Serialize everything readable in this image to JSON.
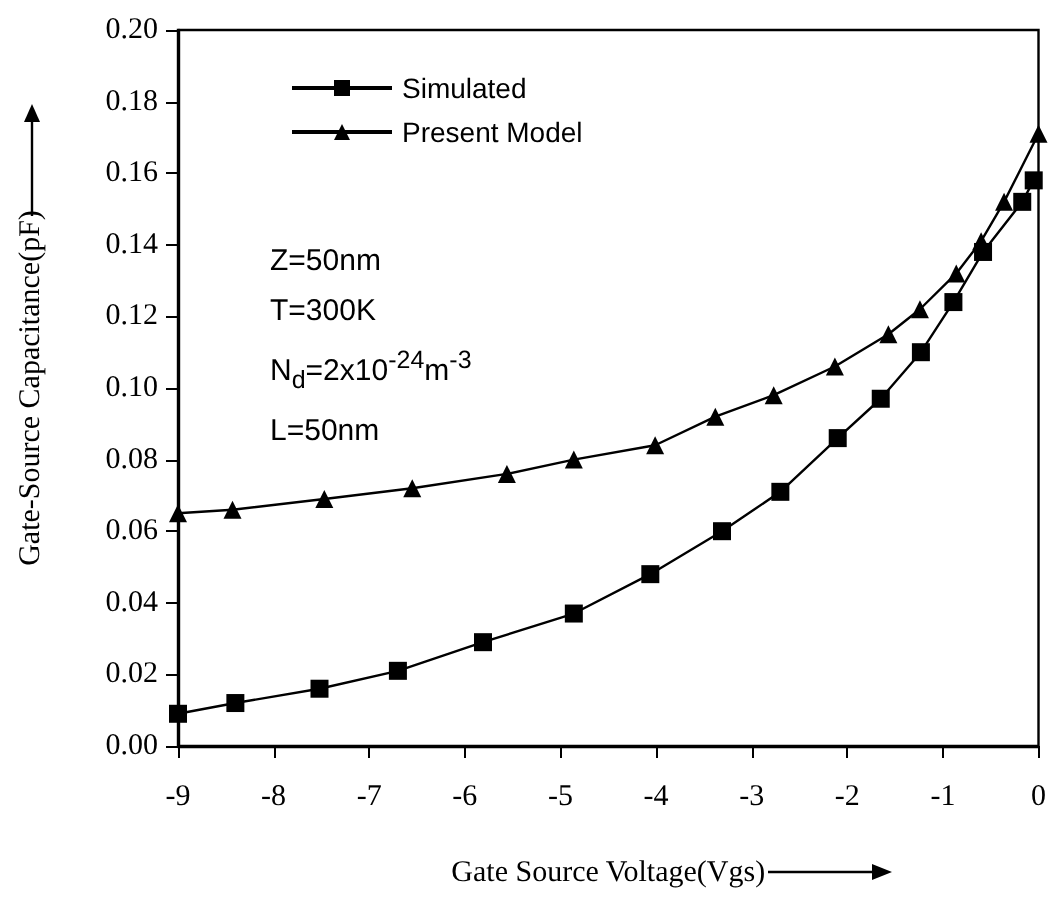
{
  "chart_data": {
    "type": "line",
    "xlabel": "Gate Source Voltage(Vgs)",
    "ylabel": "Gate-Source Capacitance(pF)",
    "xlim": [
      -9,
      0
    ],
    "xticks": [
      -9,
      -8,
      -7,
      -6,
      -5,
      -4,
      -3,
      -2,
      -1,
      0
    ],
    "ylim": [
      0,
      0.2
    ],
    "yticks": [
      {
        "value": 0,
        "label": "0.00"
      },
      {
        "value": 0.02,
        "label": "0.02"
      },
      {
        "value": 0.04,
        "label": "0.04"
      },
      {
        "value": 0.06,
        "label": "0.06"
      },
      {
        "value": 0.08,
        "label": "0.08"
      },
      {
        "value": 0.1,
        "label": "0.10"
      },
      {
        "value": 0.12,
        "label": "0.12"
      },
      {
        "value": 0.14,
        "label": "0.14"
      },
      {
        "value": 0.16,
        "label": "0.16"
      },
      {
        "value": 0.18,
        "label": "0.18"
      },
      {
        "value": 0.2,
        "label": "0.20"
      }
    ],
    "grid": false,
    "legend": "top left",
    "line_style": "solid",
    "annotations": [
      "Z=50nm",
      "T=300K",
      "N$_{d}$=2x10$^{-24}$m$^{-3}$",
      "L=50nm"
    ],
    "series": [
      {
        "name": "Simulated",
        "color": "#000000",
        "marker": "square",
        "x": [
          -9.0,
          -8.4,
          -7.52,
          -6.7,
          -5.81,
          -4.86,
          -4.06,
          -3.31,
          -2.7,
          -2.1,
          -1.65,
          -1.23,
          -0.89,
          -0.58,
          -0.17,
          -0.05
        ],
        "values": [
          0.009,
          0.012,
          0.016,
          0.021,
          0.029,
          0.037,
          0.048,
          0.06,
          0.071,
          0.086,
          0.097,
          0.11,
          0.124,
          0.138,
          0.152,
          0.158
        ]
      },
      {
        "name": "Present Model",
        "color": "#000000",
        "marker": "triangle",
        "x": [
          -9.0,
          -8.43,
          -7.47,
          -6.55,
          -5.56,
          -4.86,
          -4.01,
          -3.38,
          -2.77,
          -2.13,
          -1.57,
          -1.24,
          -0.86,
          -0.6,
          -0.36,
          0.0
        ],
        "values": [
          0.065,
          0.066,
          0.069,
          0.072,
          0.076,
          0.08,
          0.084,
          0.092,
          0.098,
          0.106,
          0.115,
          0.122,
          0.132,
          0.141,
          0.152,
          0.171
        ]
      }
    ]
  }
}
